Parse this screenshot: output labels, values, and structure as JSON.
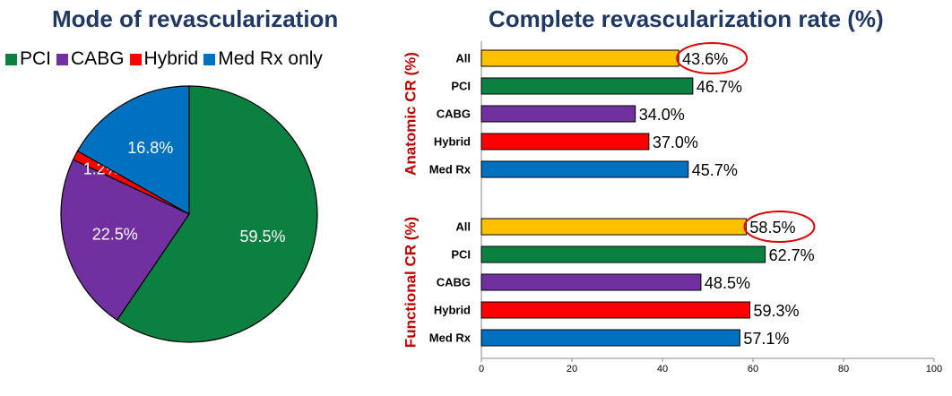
{
  "chart_data": [
    {
      "type": "pie",
      "title": "Mode of revascularization",
      "slices": [
        {
          "label": "PCI",
          "value": 59.5,
          "label_text": "59.5%",
          "color": "#0b8040"
        },
        {
          "label": "CABG",
          "value": 22.5,
          "label_text": "22.5%",
          "color": "#7030a0"
        },
        {
          "label": "Hybrid",
          "value": 1.2,
          "label_text": "1.2%",
          "color": "#ff0000"
        },
        {
          "label": "Med Rx only",
          "value": 16.8,
          "label_text": "16.8%",
          "color": "#0070c0"
        }
      ]
    },
    {
      "type": "bar",
      "orientation": "horizontal",
      "title": "Complete revascularization rate (%)",
      "xlim": [
        0,
        100
      ],
      "xticks": [
        "0",
        "20",
        "40",
        "60",
        "80",
        "100"
      ],
      "groups": [
        {
          "name": "Anatomic CR (%)",
          "categories": [
            "All",
            "PCI",
            "CABG",
            "Hybrid",
            "Med Rx"
          ],
          "values": [
            43.6,
            46.7,
            34.0,
            37.0,
            45.7
          ],
          "value_labels": [
            "43.6%",
            "46.7%",
            "34.0%",
            "37.0%",
            "45.7%"
          ],
          "highlighted": "All"
        },
        {
          "name": "Functional CR (%)",
          "categories": [
            "All",
            "PCI",
            "CABG",
            "Hybrid",
            "Med Rx"
          ],
          "values": [
            58.5,
            62.7,
            48.5,
            59.3,
            57.1
          ],
          "value_labels": [
            "58.5%",
            "62.7%",
            "48.5%",
            "59.3%",
            "57.1%"
          ],
          "highlighted": "All"
        }
      ],
      "bar_colors": [
        "#ffc000",
        "#0b8040",
        "#7030a0",
        "#ff0000",
        "#0070c0"
      ],
      "group_label_color": "#c00000",
      "highlight_color": "#e00000"
    }
  ]
}
